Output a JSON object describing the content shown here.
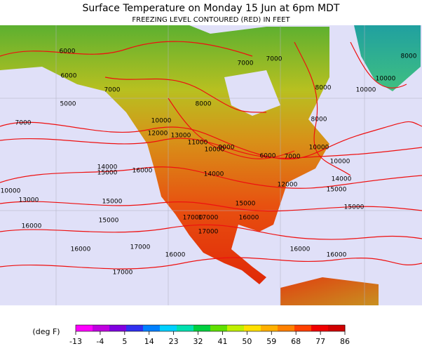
{
  "header": {
    "title": "Surface Temperature on Monday 15 Jun at 6pm MDT",
    "subtitle": "FREEZING LEVEL CONTOURED (RED) IN FEET"
  },
  "map": {
    "contour_labels": [
      "6000",
      "6000",
      "5000",
      "7000",
      "7000",
      "7000",
      "7000",
      "8000",
      "8000",
      "8000",
      "10000",
      "12000",
      "13000",
      "11000",
      "10000",
      "9000",
      "6000",
      "7000",
      "10000",
      "10000",
      "14000",
      "15000",
      "16000",
      "14000",
      "12000",
      "14000",
      "15000",
      "10000",
      "13000",
      "15000",
      "15000",
      "15000",
      "16000",
      "17000",
      "17000",
      "17000",
      "15000",
      "16000",
      "16000",
      "17000",
      "16000",
      "16000",
      "16000",
      "17000",
      "10000",
      "10000",
      "8000"
    ]
  },
  "legend": {
    "unit": "(deg F)",
    "ticks": [
      -13,
      -4,
      5,
      14,
      23,
      32,
      41,
      50,
      59,
      68,
      77,
      86
    ]
  }
}
